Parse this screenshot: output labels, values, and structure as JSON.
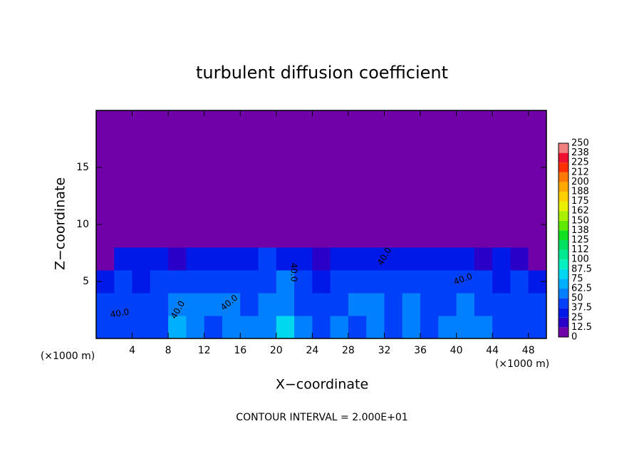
{
  "chart_data": {
    "type": "heatmap",
    "title": "turbulent diffusion coefficient",
    "xlabel": "X−coordinate",
    "ylabel": "Z−coordinate",
    "x_unit": "(×1000 m)",
    "y_unit": "(×1000 m)",
    "footnote": "CONTOUR INTERVAL = 2.000E+01",
    "contour_labels": [
      "40.0",
      "40.0",
      "40.0",
      "40.0",
      "40.0",
      "40.0"
    ],
    "xlim": [
      0,
      50
    ],
    "ylim": [
      0,
      20
    ],
    "xticks": [
      4,
      8,
      12,
      16,
      20,
      24,
      28,
      32,
      36,
      40,
      44,
      48
    ],
    "yticks": [
      5,
      10,
      15
    ],
    "levels": [
      0,
      12.5,
      25,
      37.5,
      50,
      62.5,
      75,
      87.5,
      100,
      112,
      125,
      138,
      150,
      162,
      175,
      188,
      200,
      212,
      225,
      238,
      250
    ],
    "colors": [
      "#7000a8",
      "#2a00c8",
      "#0018e8",
      "#0040f8",
      "#0080ff",
      "#00b0ff",
      "#00d8f0",
      "#00f0c0",
      "#00e890",
      "#00e060",
      "#10e020",
      "#60e800",
      "#a8f000",
      "#e8f000",
      "#ffd000",
      "#ffa800",
      "#ff7800",
      "#ff3000",
      "#f01030",
      "#f08080"
    ],
    "field": {
      "x": [
        1,
        3,
        5,
        7,
        9,
        11,
        13,
        15,
        17,
        19,
        21,
        23,
        25,
        27,
        29,
        31,
        33,
        35,
        37,
        39,
        41,
        43,
        45,
        47,
        49
      ],
      "z": [
        1,
        3,
        5,
        7,
        9,
        11,
        13,
        15,
        17,
        19
      ],
      "values": [
        [
          45,
          45,
          40,
          45,
          70,
          55,
          45,
          50,
          55,
          60,
          75,
          50,
          45,
          50,
          45,
          50,
          45,
          55,
          45,
          50,
          55,
          50,
          45,
          40,
          45
        ],
        [
          40,
          45,
          40,
          45,
          55,
          50,
          50,
          55,
          45,
          55,
          60,
          45,
          40,
          45,
          50,
          55,
          45,
          50,
          45,
          45,
          50,
          45,
          45,
          40,
          40
        ],
        [
          35,
          40,
          35,
          40,
          45,
          40,
          45,
          40,
          40,
          45,
          50,
          40,
          35,
          40,
          45,
          45,
          40,
          40,
          45,
          40,
          45,
          40,
          35,
          40,
          35
        ],
        [
          12,
          30,
          30,
          25,
          20,
          30,
          35,
          35,
          30,
          40,
          30,
          25,
          20,
          25,
          30,
          35,
          30,
          30,
          35,
          30,
          25,
          20,
          25,
          20,
          0
        ],
        [
          0,
          0,
          0,
          0,
          0,
          0,
          0,
          0,
          0,
          0,
          0,
          0,
          0,
          0,
          0,
          0,
          0,
          0,
          0,
          0,
          0,
          0,
          0,
          0,
          0
        ],
        [
          0,
          0,
          0,
          0,
          0,
          0,
          0,
          0,
          0,
          0,
          0,
          0,
          0,
          0,
          0,
          0,
          0,
          0,
          0,
          0,
          0,
          0,
          0,
          0,
          0
        ],
        [
          0,
          0,
          0,
          0,
          0,
          0,
          0,
          0,
          0,
          0,
          0,
          0,
          0,
          0,
          0,
          0,
          0,
          0,
          0,
          0,
          0,
          0,
          0,
          0,
          0
        ],
        [
          0,
          0,
          0,
          0,
          0,
          0,
          0,
          0,
          0,
          0,
          0,
          0,
          0,
          0,
          0,
          0,
          0,
          0,
          0,
          0,
          0,
          0,
          0,
          0,
          0
        ],
        [
          0,
          0,
          0,
          0,
          0,
          0,
          0,
          0,
          0,
          0,
          0,
          0,
          0,
          0,
          0,
          0,
          0,
          0,
          0,
          0,
          0,
          0,
          0,
          0,
          0
        ],
        [
          0,
          0,
          0,
          0,
          0,
          0,
          0,
          0,
          0,
          0,
          0,
          0,
          0,
          0,
          0,
          0,
          0,
          0,
          0,
          0,
          0,
          0,
          0,
          0,
          0
        ]
      ]
    }
  }
}
